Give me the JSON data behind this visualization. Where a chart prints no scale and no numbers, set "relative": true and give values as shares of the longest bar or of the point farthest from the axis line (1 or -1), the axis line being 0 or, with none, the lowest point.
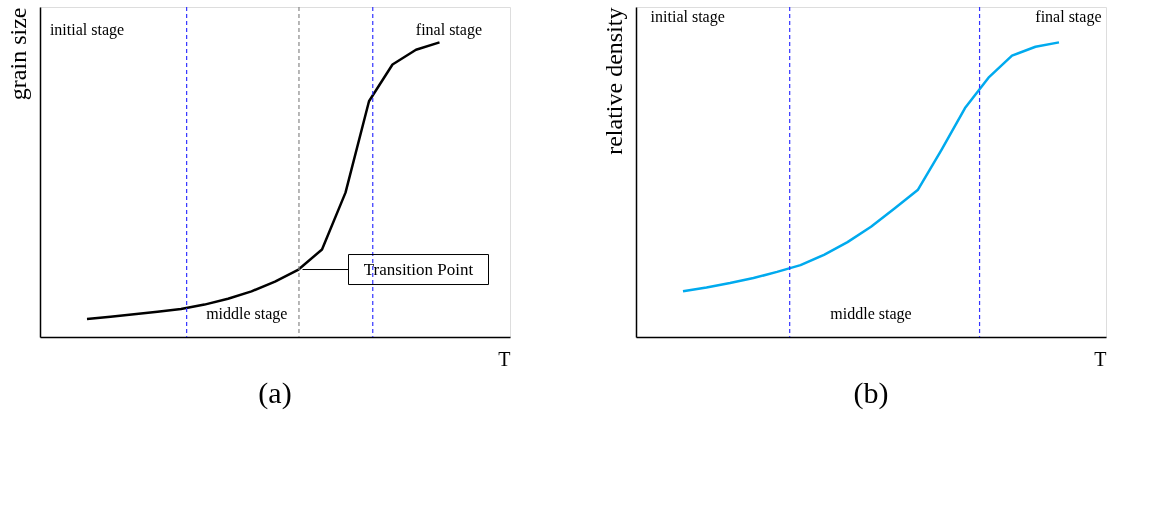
{
  "chart_data": [
    {
      "type": "line",
      "title": "(a)",
      "xlabel": "T",
      "ylabel": "grain size",
      "relative": true,
      "tick_labels": false,
      "grid": false,
      "line_style": "solid",
      "marker": "none",
      "categories": [
        null,
        null,
        null,
        null,
        null,
        null,
        null,
        null,
        null,
        null,
        null,
        null,
        null,
        null,
        null,
        null,
        null,
        null,
        null,
        null,
        null
      ],
      "series": [
        {
          "color": "#000000",
          "values": [
            null,
            null,
            0.061,
            0.069,
            0.077,
            0.086,
            0.095,
            0.11,
            0.13,
            0.155,
            0.188,
            0.229,
            0.297,
            0.49,
            0.8,
            0.925,
            0.975,
            1,
            null,
            null,
            null
          ]
        }
      ],
      "annotations": [
        "initial stage",
        "middle stage",
        "final stage",
        "Transition Point"
      ]
    },
    {
      "type": "line",
      "title": "(b)",
      "xlabel": "T",
      "ylabel": "relative density",
      "relative": true,
      "tick_labels": false,
      "grid": false,
      "line_style": "solid",
      "marker": "none",
      "categories": [
        null,
        null,
        null,
        null,
        null,
        null,
        null,
        null,
        null,
        null,
        null,
        null,
        null,
        null,
        null,
        null,
        null,
        null,
        null,
        null,
        null
      ],
      "series": [
        {
          "color": "#00aaee",
          "values": [
            null,
            null,
            0.155,
            0.168,
            0.183,
            0.2,
            0.221,
            0.244,
            0.279,
            0.322,
            0.374,
            0.436,
            0.5,
            0.635,
            0.777,
            0.88,
            0.955,
            0.985,
            1,
            null,
            null
          ]
        }
      ],
      "annotations": [
        "initial stage",
        "middle stage",
        "final stage"
      ]
    }
  ]
}
